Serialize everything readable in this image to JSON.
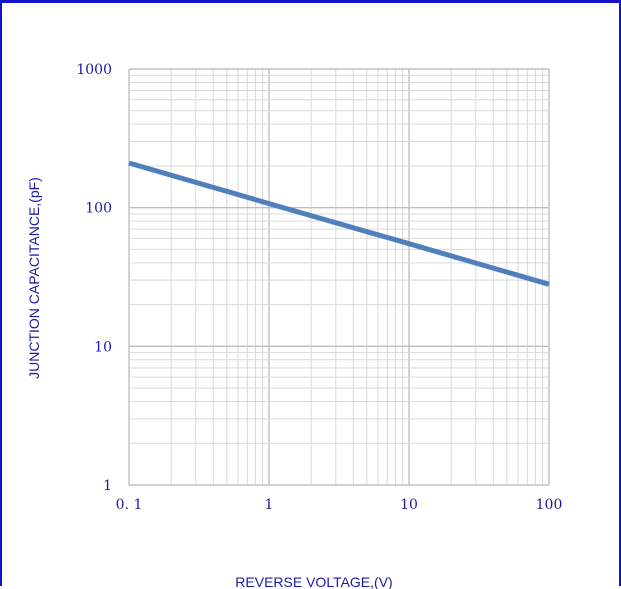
{
  "chart_data": {
    "type": "line",
    "xlabel": "REVERSE VOLTAGE,(V)",
    "ylabel": "JUNCTION CAPACITANCE,(pF)",
    "xscale": "log",
    "yscale": "log",
    "xlim": [
      0.1,
      100
    ],
    "ylim": [
      1,
      1000
    ],
    "x_ticks": [
      "0. 1",
      "1",
      "10",
      "100"
    ],
    "y_ticks": [
      "1",
      "10",
      "100",
      "1000"
    ],
    "grid": true,
    "legend": "none",
    "series": [
      {
        "x": [
          0.1,
          1,
          10,
          100
        ],
        "y": [
          210,
          107,
          55,
          28
        ]
      }
    ],
    "colors": {
      "line": "#4f7fbd",
      "grid": "#d9d9d9",
      "text": "#1a1aa0",
      "border": "#1414c8"
    }
  }
}
